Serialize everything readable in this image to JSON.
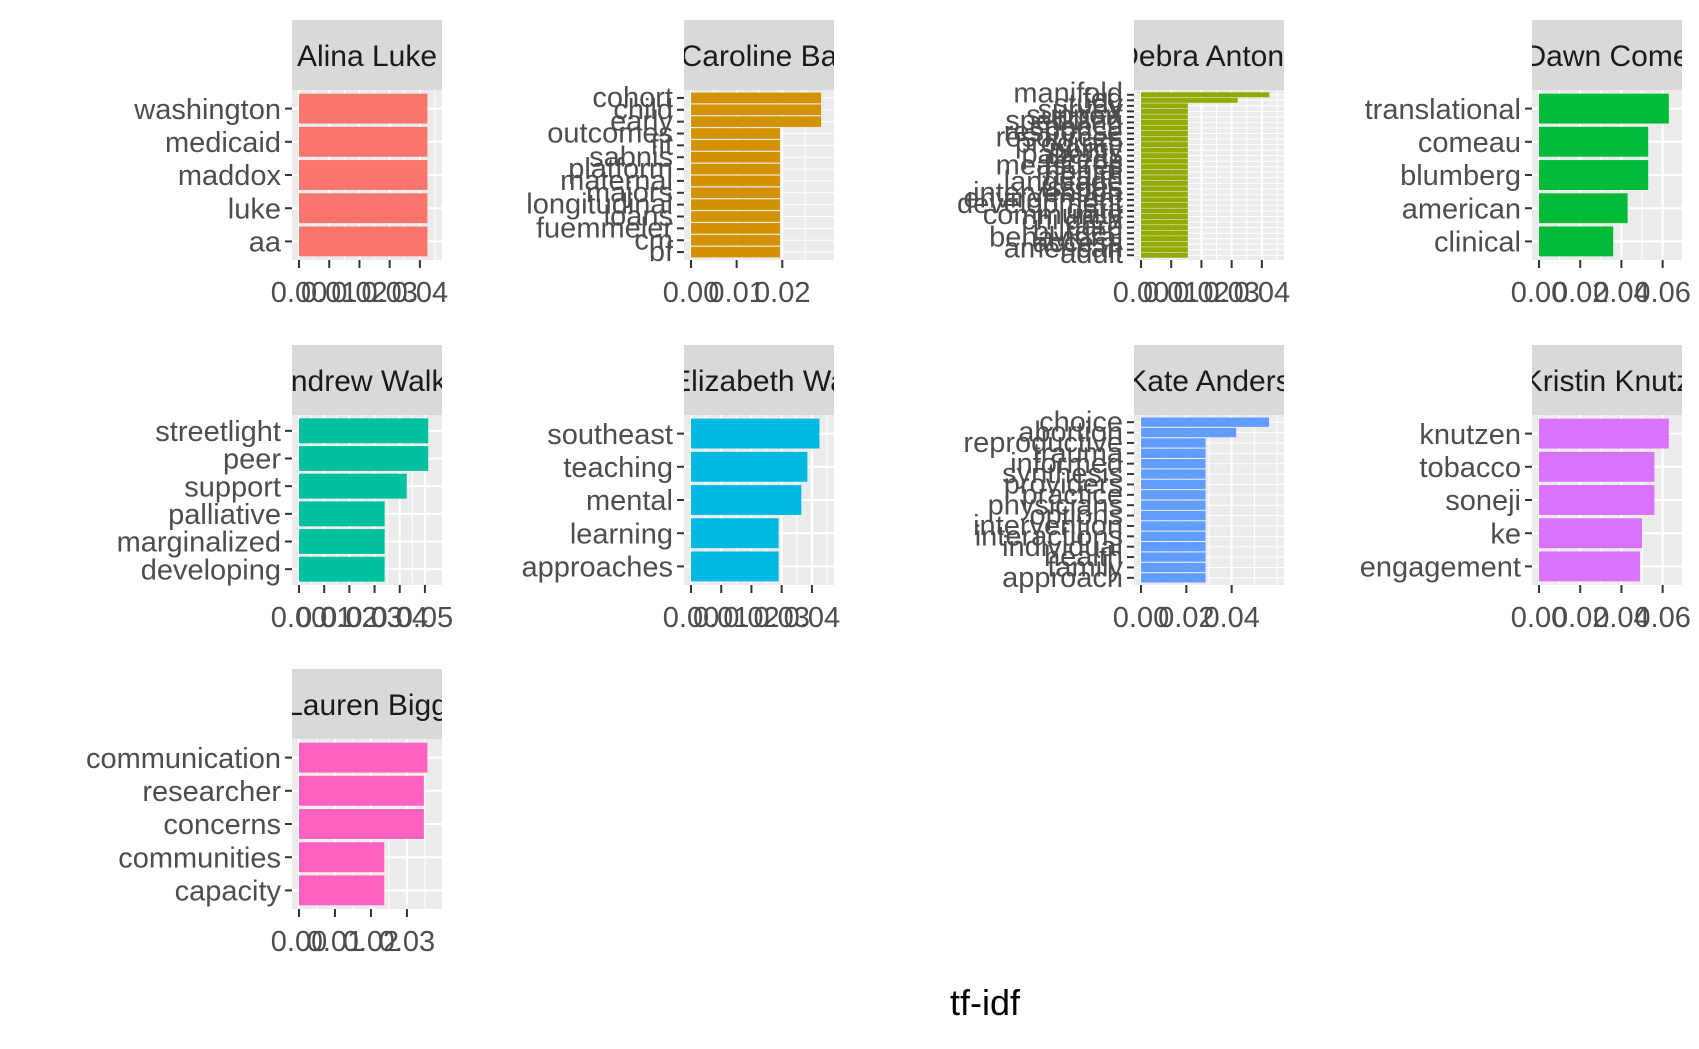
{
  "chart_data": [
    {
      "type": "bar",
      "orientation": "horizontal",
      "facet_label": "Alina Luke",
      "color": "#F8766D",
      "categories": [
        "washington",
        "medicaid",
        "maddox",
        "luke",
        "aa"
      ],
      "values": [
        0.0425,
        0.0425,
        0.0425,
        0.0425,
        0.0425
      ],
      "xlim": [
        0,
        0.045
      ],
      "x_ticks": [
        0,
        0.01,
        0.02,
        0.03,
        0.04
      ],
      "x_tick_labels": [
        "0.00",
        "0.01",
        "0.02",
        "0.03",
        "0.04"
      ]
    },
    {
      "type": "bar",
      "orientation": "horizontal",
      "facet_label": "Caroline Ba",
      "color": "#D39200",
      "categories": [
        "cohort",
        "child",
        "early",
        "outcomes",
        "fit",
        "sabnis",
        "platform",
        "maternal",
        "majors",
        "longitudinal",
        "loans",
        "fuemmeler",
        "cm",
        "bf"
      ],
      "values": [
        0.0285,
        0.0285,
        0.0285,
        0.0195,
        0.0195,
        0.0195,
        0.0195,
        0.0195,
        0.0195,
        0.0195,
        0.0195,
        0.0195,
        0.0195,
        0.0195
      ],
      "xlim": [
        0,
        0.0298
      ],
      "x_ticks": [
        0,
        0.01,
        0.02
      ],
      "x_tick_labels": [
        "0.00",
        "0.01",
        "0.02"
      ]
    },
    {
      "type": "bar",
      "orientation": "horizontal",
      "facet_label": "Debra Antona",
      "color": "#93AA00",
      "categories": [
        "manifold",
        "fed",
        "study",
        "survey",
        "support",
        "spending",
        "speech",
        "response",
        "resources",
        "program",
        "policy",
        "patients",
        "needs",
        "measures",
        "mental",
        "health",
        "language",
        "issues",
        "intervention",
        "environment",
        "development",
        "data",
        "community",
        "children",
        "care",
        "burden",
        "behavioral",
        "access",
        "american",
        "adult"
      ],
      "values": [
        0.0425,
        0.032,
        0.0155,
        0.0155,
        0.0155,
        0.0155,
        0.0155,
        0.0155,
        0.0155,
        0.0155,
        0.0155,
        0.0155,
        0.0155,
        0.0155,
        0.0155,
        0.0155,
        0.0155,
        0.0155,
        0.0155,
        0.0155,
        0.0155,
        0.0155,
        0.0155,
        0.0155,
        0.0155,
        0.0155,
        0.0155,
        0.0155,
        0.0155,
        0.0155
      ],
      "xlim": [
        0,
        0.045
      ],
      "x_ticks": [
        0,
        0.01,
        0.02,
        0.03,
        0.04
      ],
      "x_tick_labels": [
        "0.00",
        "0.01",
        "0.02",
        "0.03",
        "0.04"
      ]
    },
    {
      "type": "bar",
      "orientation": "horizontal",
      "facet_label": "Dawn Come",
      "color": "#00BA38",
      "categories": [
        "translational",
        "comeau",
        "blumberg",
        "american",
        "clinical"
      ],
      "values": [
        0.063,
        0.053,
        0.053,
        0.043,
        0.036
      ],
      "xlim": [
        0,
        0.066
      ],
      "x_ticks": [
        0,
        0.02,
        0.04,
        0.06
      ],
      "x_tick_labels": [
        "0.00",
        "0.02",
        "0.04",
        "0.06"
      ]
    },
    {
      "type": "bar",
      "orientation": "horizontal",
      "facet_label": "Andrew Walke",
      "color": "#00C19F",
      "categories": [
        "streetlight",
        "peer",
        "support",
        "palliative",
        "marginalized",
        "developing"
      ],
      "values": [
        0.0513,
        0.0513,
        0.0428,
        0.034,
        0.034,
        0.034
      ],
      "xlim": [
        0,
        0.054
      ],
      "x_ticks": [
        0,
        0.01,
        0.02,
        0.03,
        0.04,
        0.05
      ],
      "x_tick_labels": [
        "0.00",
        "0.01",
        "0.02",
        "0.03",
        "0.04",
        "0.05"
      ]
    },
    {
      "type": "bar",
      "orientation": "horizontal",
      "facet_label": "Elizabeth Wa",
      "color": "#00B9E3",
      "categories": [
        "southeast",
        "teaching",
        "mental",
        "learning",
        "approaches"
      ],
      "values": [
        0.0425,
        0.0385,
        0.0365,
        0.029,
        0.029
      ],
      "xlim": [
        0,
        0.045
      ],
      "x_ticks": [
        0,
        0.01,
        0.02,
        0.03,
        0.04
      ],
      "x_tick_labels": [
        "0.00",
        "0.01",
        "0.02",
        "0.03",
        "0.04"
      ]
    },
    {
      "type": "bar",
      "orientation": "horizontal",
      "facet_label": "Kate Anders",
      "color": "#619CFF",
      "categories": [
        "choice",
        "abortion",
        "reproductive",
        "trauma",
        "informed",
        "synthesis",
        "providers",
        "practice",
        "physicians",
        "options",
        "intervention",
        "interactions",
        "individual",
        "health",
        "family",
        "approach"
      ],
      "values": [
        0.0565,
        0.042,
        0.0285,
        0.0285,
        0.0285,
        0.0285,
        0.0285,
        0.0285,
        0.0285,
        0.0285,
        0.0285,
        0.0285,
        0.0285,
        0.0285,
        0.0285,
        0.0285
      ],
      "xlim": [
        0,
        0.06
      ],
      "x_ticks": [
        0,
        0.02,
        0.04
      ],
      "x_tick_labels": [
        "0.00",
        "0.02",
        "0.04"
      ]
    },
    {
      "type": "bar",
      "orientation": "horizontal",
      "facet_label": "Kristin Knutz",
      "color": "#DB72FB",
      "categories": [
        "knutzen",
        "tobacco",
        "soneji",
        "ke",
        "engagement"
      ],
      "values": [
        0.063,
        0.056,
        0.056,
        0.05,
        0.049
      ],
      "xlim": [
        0,
        0.066
      ],
      "x_ticks": [
        0,
        0.02,
        0.04,
        0.06
      ],
      "x_tick_labels": [
        "0.00",
        "0.02",
        "0.04",
        "0.06"
      ]
    },
    {
      "type": "bar",
      "orientation": "horizontal",
      "facet_label": "Lauren Bigg",
      "color": "#FF61C3",
      "categories": [
        "communication",
        "researcher",
        "concerns",
        "communities",
        "capacity"
      ],
      "values": [
        0.0357,
        0.0347,
        0.0347,
        0.0237,
        0.0237
      ],
      "xlim": [
        0,
        0.0378
      ],
      "x_ticks": [
        0,
        0.01,
        0.02,
        0.03
      ],
      "x_tick_labels": [
        "0.00",
        "0.01",
        "0.02",
        "0.03"
      ]
    }
  ],
  "x_axis_title": "tf-idf",
  "strip_background": "#D9D9D9",
  "panel_background": "#EBEBEB",
  "grid_color": "#FFFFFF"
}
